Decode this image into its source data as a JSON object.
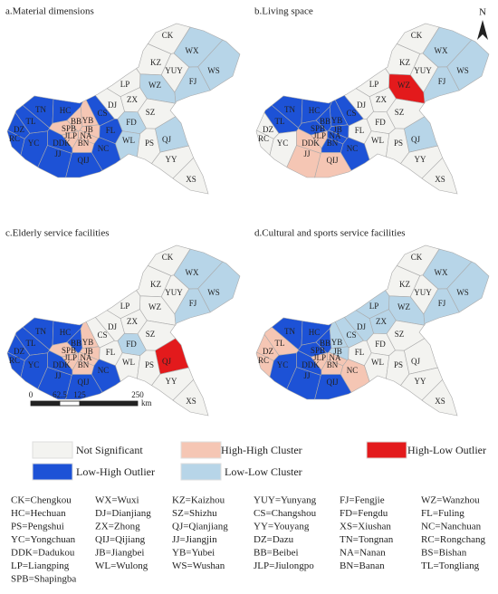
{
  "panels": [
    {
      "title": "a.Material dimensions"
    },
    {
      "title": "b.Living space"
    },
    {
      "title": "c.Elderly service facilities"
    },
    {
      "title": "d.Cultural and sports service facilities"
    }
  ],
  "map_labels": [
    "CK",
    "WX",
    "KZ",
    "YUY",
    "WS",
    "FJ",
    "WZ",
    "LP",
    "ZX",
    "DJ",
    "SZ",
    "TN",
    "HC",
    "TL",
    "BB",
    "YB",
    "CS",
    "DZ",
    "SPB",
    "JB",
    "RC",
    "JLP",
    "NA",
    "YC",
    "DDK",
    "BN",
    "FD",
    "FL",
    "WL",
    "NC",
    "JJ",
    "QJ",
    "PS",
    "QIJ",
    "YY",
    "XS"
  ],
  "north": "N",
  "scale_bar": {
    "ticks": [
      0,
      62.5,
      125,
      250
    ],
    "unit": "km"
  },
  "legend": [
    "Not Significant",
    "High-High Cluster",
    "High-Low Outlier",
    "Low-High Outlier",
    "Low-Low Cluster"
  ],
  "key": [
    "CK=Chengkou",
    "WX=Wuxi",
    "KZ=Kaizhou",
    "YUY=Yunyang",
    "FJ=Fengjie",
    "WZ=Wanzhou",
    "HC=Hechuan",
    "DJ=Dianjiang",
    "SZ=Shizhu",
    "CS=Changshou",
    "FD=Fengdu",
    "FL=Fuling",
    "PS=Pengshui",
    "ZX=Zhong",
    "QJ=Qianjiang",
    "YY=Youyang",
    "XS=Xiushan",
    "NC=Nanchuan",
    "YC=Yongchuan",
    "QIJ=Qijiang",
    "JJ=Jiangjin",
    "DZ=Dazu",
    "TN=Tongnan",
    "RC=Rongchang",
    "DDK=Dadukou",
    "JB=Jiangbei",
    "YB=Yubei",
    "BB=Beibei",
    "NA=Nanan",
    "BS=Bishan",
    "LP=Liangping",
    "WL=Wulong",
    "WS=Wushan",
    "JLP=Jiulongpo",
    "BN=Banan",
    "TL=Tongliang",
    "SPB=Shapingba"
  ]
}
